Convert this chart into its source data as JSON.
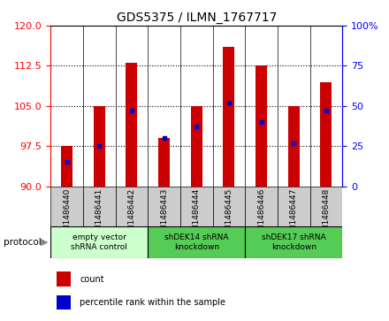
{
  "title": "GDS5375 / ILMN_1767717",
  "samples": [
    "GSM1486440",
    "GSM1486441",
    "GSM1486442",
    "GSM1486443",
    "GSM1486444",
    "GSM1486445",
    "GSM1486446",
    "GSM1486447",
    "GSM1486448"
  ],
  "count_values": [
    97.5,
    105.0,
    113.0,
    99.0,
    105.0,
    116.0,
    112.5,
    105.0,
    109.5
  ],
  "percentile_values": [
    15,
    25,
    47,
    30,
    37,
    52,
    40,
    27,
    47
  ],
  "ylim_left": [
    90,
    120
  ],
  "ylim_right": [
    0,
    100
  ],
  "yticks_left": [
    90,
    97.5,
    105,
    112.5,
    120
  ],
  "yticks_right": [
    0,
    25,
    50,
    75,
    100
  ],
  "bar_color": "#cc0000",
  "percentile_color": "#0000cc",
  "bar_width": 0.35,
  "bar_bottom": 90,
  "groups": [
    {
      "label": "empty vector\nshRNA control",
      "start": 0,
      "end": 3,
      "color": "#ccffcc"
    },
    {
      "label": "shDEK14 shRNA\nknockdown",
      "start": 3,
      "end": 6,
      "color": "#55cc55"
    },
    {
      "label": "shDEK17 shRNA\nknockdown",
      "start": 6,
      "end": 9,
      "color": "#55cc55"
    }
  ],
  "protocol_label": "protocol",
  "legend_count_label": "count",
  "legend_percentile_label": "percentile rank within the sample",
  "grid_color": "#000000",
  "background_color": "#ffffff",
  "xticklabel_box_color": "#cccccc",
  "top_spine_color": "#000000"
}
